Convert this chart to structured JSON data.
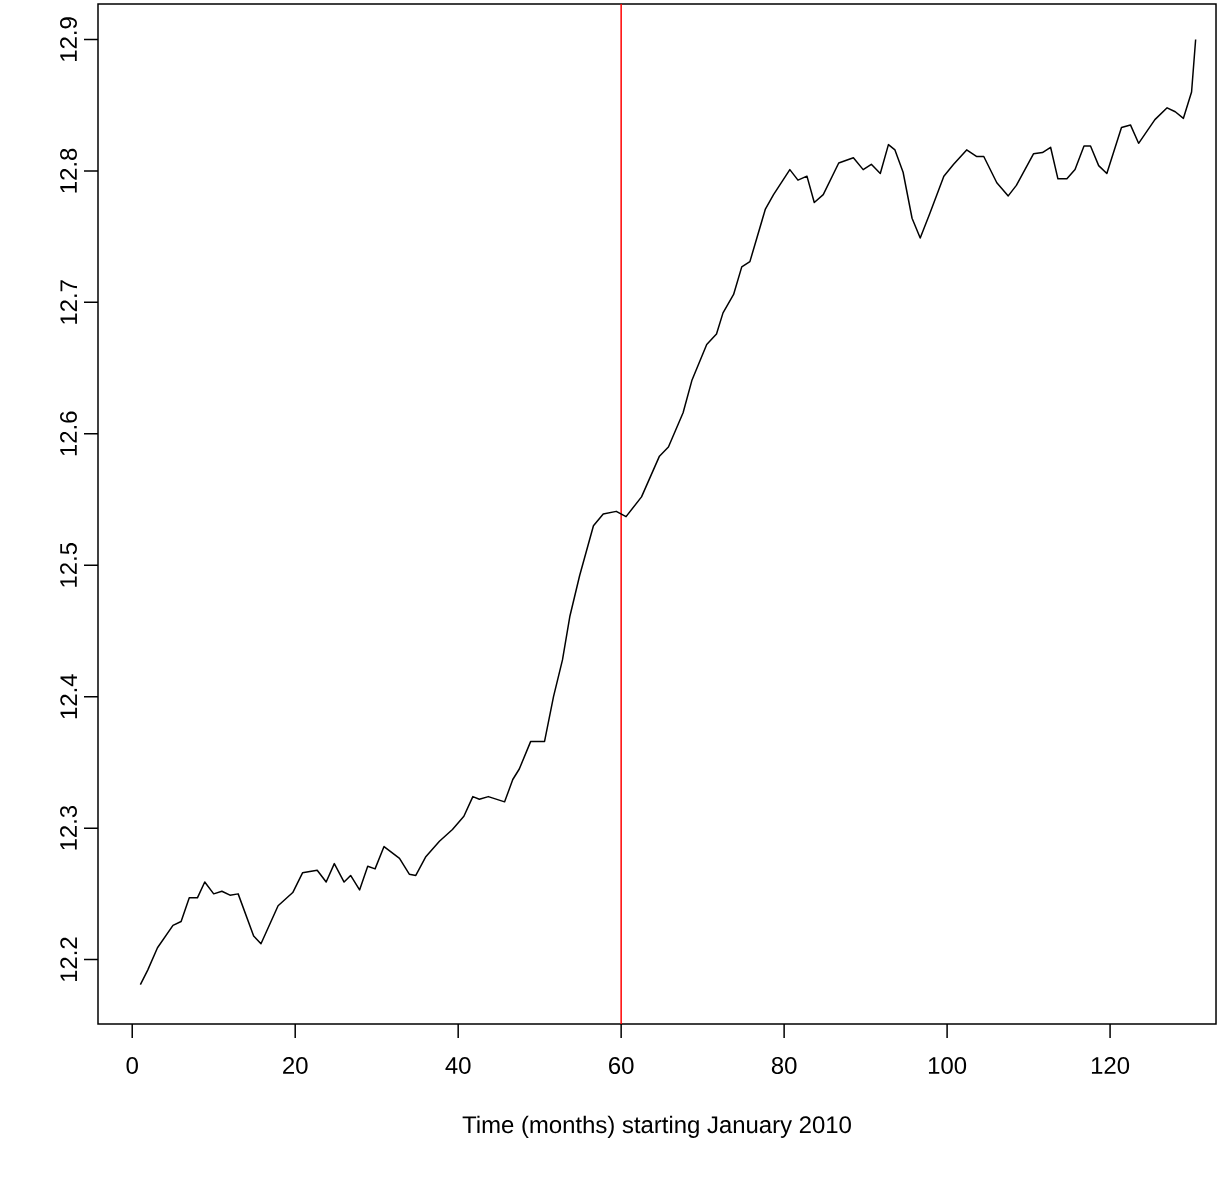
{
  "chart_data": {
    "type": "line",
    "xlabel": "Time (months) starting January 2010",
    "x": [
      1,
      1.9,
      3.1,
      5,
      6,
      7,
      8,
      8.9,
      10,
      11,
      12,
      13,
      14.9,
      15.8,
      17.9,
      19.7,
      20.9,
      22.7,
      23.8,
      24.8,
      26,
      26.8,
      27.9,
      28.9,
      29.8,
      30.9,
      32.8,
      34,
      34.8,
      36,
      37.7,
      39.3,
      40.7,
      41.8,
      42.6,
      43.7,
      45.7,
      46.7,
      47.5,
      48.9,
      50.6,
      51.7,
      52.8,
      53.7,
      54.9,
      56.6,
      57.8,
      59.4,
      60.6,
      62.5,
      64.7,
      65.8,
      67.6,
      68.7,
      70.5,
      71.7,
      72.5,
      73.8,
      74.8,
      75.8,
      77.7,
      78.7,
      80.7,
      81.7,
      82.8,
      83.7,
      84.8,
      86.7,
      88.5,
      89.7,
      90.7,
      91.8,
      92.8,
      93.6,
      94.6,
      95.7,
      96.7,
      97.9,
      99.6,
      100.8,
      102.4,
      103.6,
      104.5,
      106.1,
      107.5,
      108.5,
      110.6,
      111.7,
      112.7,
      113.6,
      114.7,
      115.7,
      116.8,
      117.6,
      118.6,
      119.6,
      121.4,
      122.5,
      123.5,
      125.5,
      127,
      128,
      129,
      130,
      130.5
    ],
    "series": [
      {
        "color": "#000000",
        "values": [
          12.181,
          12.192,
          12.209,
          12.226,
          12.229,
          12.247,
          12.247,
          12.259,
          12.25,
          12.252,
          12.249,
          12.25,
          12.218,
          12.212,
          12.241,
          12.251,
          12.266,
          12.268,
          12.259,
          12.273,
          12.259,
          12.264,
          12.253,
          12.271,
          12.269,
          12.286,
          12.277,
          12.265,
          12.264,
          12.278,
          12.29,
          12.299,
          12.309,
          12.324,
          12.322,
          12.324,
          12.32,
          12.337,
          12.345,
          12.366,
          12.366,
          12.4,
          12.428,
          12.461,
          12.492,
          12.53,
          12.539,
          12.541,
          12.537,
          12.552,
          12.583,
          12.59,
          12.616,
          12.641,
          12.668,
          12.676,
          12.692,
          12.706,
          12.727,
          12.731,
          12.771,
          12.782,
          12.801,
          12.793,
          12.796,
          12.776,
          12.782,
          12.806,
          12.81,
          12.801,
          12.805,
          12.798,
          12.82,
          12.816,
          12.799,
          12.764,
          12.749,
          12.768,
          12.796,
          12.805,
          12.816,
          12.811,
          12.811,
          12.791,
          12.781,
          12.789,
          12.813,
          12.814,
          12.818,
          12.794,
          12.794,
          12.801,
          12.819,
          12.819,
          12.804,
          12.798,
          12.833,
          12.835,
          12.821,
          12.839,
          12.848,
          12.845,
          12.84,
          12.86,
          12.9
        ]
      }
    ],
    "xlim": [
      -4.2,
      133
    ],
    "ylim": [
      12.151,
      12.927
    ],
    "xticks": [
      0,
      20,
      40,
      60,
      80,
      100,
      120
    ],
    "yticks": [
      12.2,
      12.3,
      12.4,
      12.5,
      12.6,
      12.7,
      12.8,
      12.9
    ],
    "ref_lines": [
      {
        "axis": "x",
        "value": 60,
        "color": "#ff0000"
      }
    ],
    "marker": "none",
    "line_style": "solid"
  }
}
